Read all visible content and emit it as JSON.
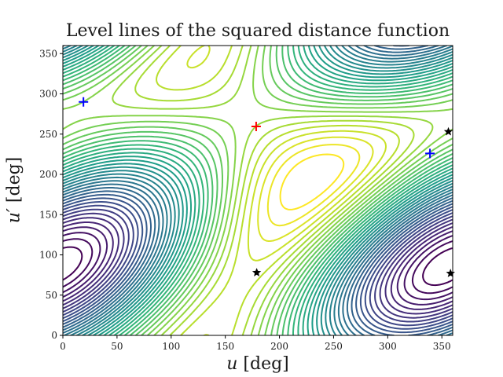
{
  "chart_data": {
    "type": "contour",
    "title": "Level lines of the squared distance function",
    "xlabel": "u [deg]",
    "ylabel": "u′ [deg]",
    "xlim": [
      0,
      360
    ],
    "ylim": [
      0,
      360
    ],
    "xticks": [
      0,
      50,
      100,
      150,
      200,
      250,
      300,
      350
    ],
    "yticks": [
      0,
      50,
      100,
      150,
      200,
      250,
      300,
      350
    ],
    "colormap": "viridis",
    "grid": false,
    "legend": null,
    "markers": [
      {
        "name": "global-maximum",
        "symbol": "+",
        "color": "#ff0000",
        "u": 178.5,
        "u_prime": 259.5
      },
      {
        "name": "local-minimum-1",
        "symbol": "+",
        "color": "#0000ff",
        "u": 19,
        "u_prime": 290
      },
      {
        "name": "local-minimum-2",
        "symbol": "+",
        "color": "#0000ff",
        "u": 339,
        "u_prime": 226
      },
      {
        "name": "saddle-1",
        "symbol": "★",
        "color": "#000000",
        "u": 179,
        "u_prime": 78
      },
      {
        "name": "saddle-2",
        "symbol": "★",
        "color": "#000000",
        "u": 356,
        "u_prime": 253
      },
      {
        "name": "saddle-3",
        "symbol": "★",
        "color": "#000000",
        "u": 358,
        "u_prime": 77
      }
    ]
  },
  "labels": {
    "title": "Level lines of the squared distance function",
    "x_var": "u",
    "x_unit": " [deg]",
    "y_var": "u′",
    "y_unit": " [deg]"
  }
}
